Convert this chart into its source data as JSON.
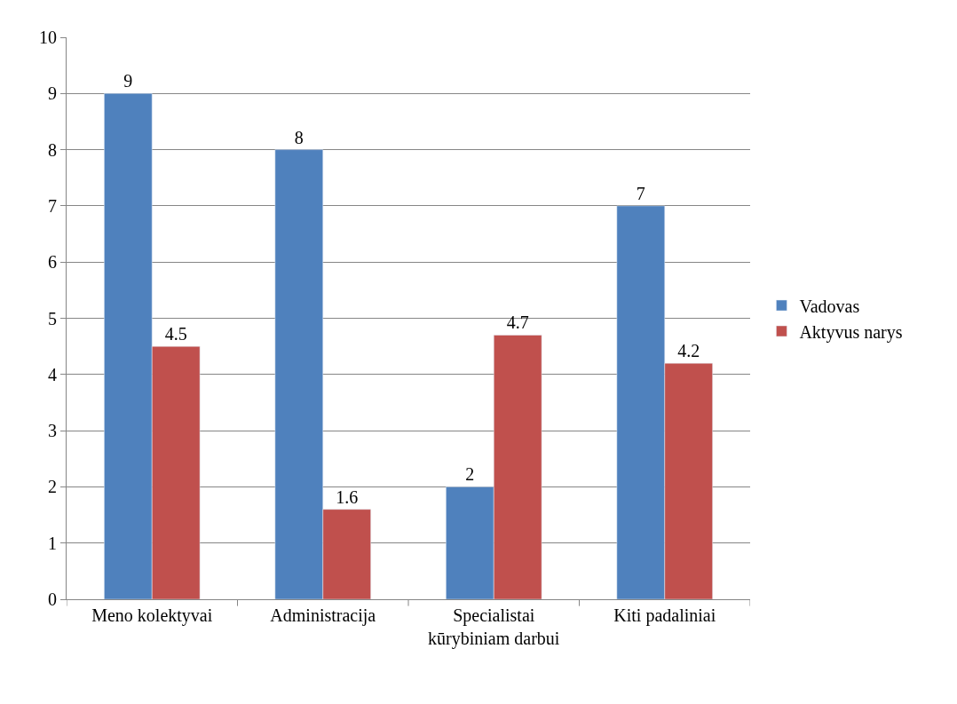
{
  "chart_data": {
    "type": "bar",
    "categories": [
      "Meno kolektyvai",
      "Administracija",
      "Specialistai kūrybiniam darbui",
      "Kiti padaliniai"
    ],
    "series": [
      {
        "name": "Vadovas",
        "color": "#4f81bd",
        "values": [
          9,
          8,
          2,
          7
        ]
      },
      {
        "name": "Aktyvus narys",
        "color": "#c0504d",
        "values": [
          4.5,
          1.6,
          4.7,
          4.2
        ]
      }
    ],
    "ylim": [
      0,
      10
    ],
    "yticks": [
      0,
      1,
      2,
      3,
      4,
      5,
      6,
      7,
      8,
      9,
      10
    ],
    "grid": "y",
    "legend": "right",
    "data_labels": true
  }
}
